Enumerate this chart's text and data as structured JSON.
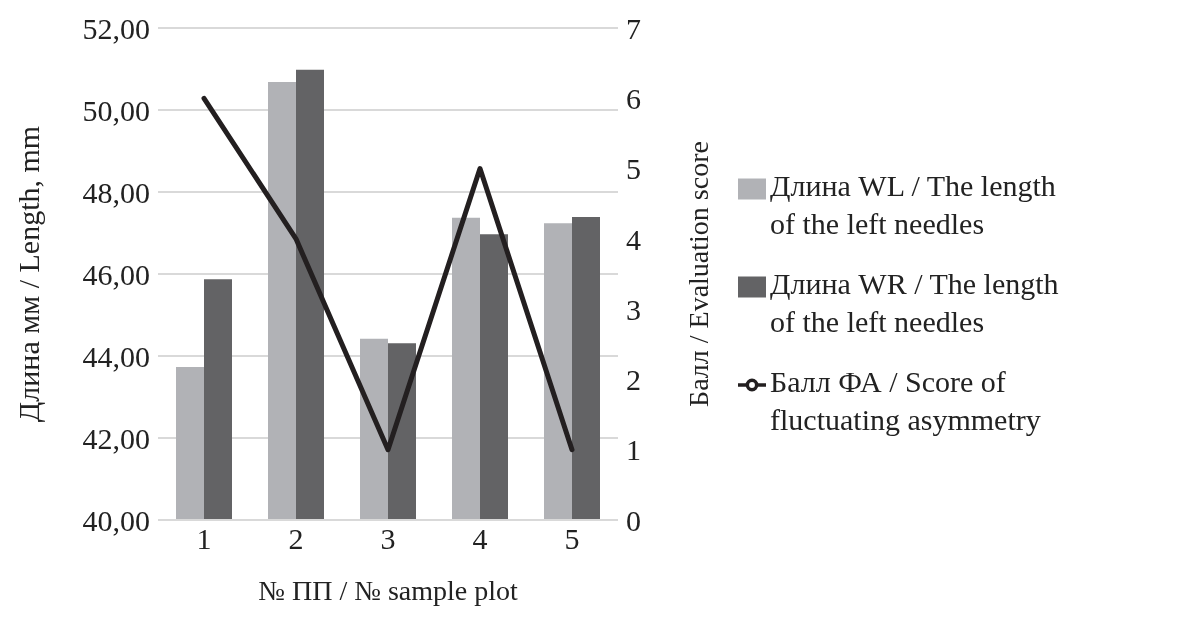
{
  "chart_data": {
    "type": "bar",
    "categories": [
      "1",
      "2",
      "3",
      "4",
      "5"
    ],
    "series": [
      {
        "name": "Длина WL / The length of the left needles",
        "color": "#b1b2b6",
        "values": [
          43.73,
          50.68,
          44.42,
          47.37,
          47.24
        ]
      },
      {
        "name": "Длина WR / The length of the left needles",
        "color": "#636365",
        "values": [
          45.87,
          50.98,
          44.31,
          46.97,
          47.39
        ]
      },
      {
        "name": "Балл ФА / Score of fluctuating asymmetry",
        "type": "line",
        "axis": "y2",
        "color": "#231f20",
        "values": [
          6,
          4,
          1,
          5,
          1
        ]
      }
    ],
    "xlabel": "№ ПП / № sample plot",
    "ylabel": "Длина мм / Length, mm",
    "y2label": "Балл / Evaluation score",
    "ylim": [
      40,
      52
    ],
    "yticks": [
      {
        "value": 40,
        "label": "40,00"
      },
      {
        "value": 42,
        "label": "42,00"
      },
      {
        "value": 44,
        "label": "44,00"
      },
      {
        "value": 46,
        "label": "46,00"
      },
      {
        "value": 48,
        "label": "48,00"
      },
      {
        "value": 50,
        "label": "50,00"
      },
      {
        "value": 52,
        "label": "52,00"
      }
    ],
    "y2lim": [
      0,
      7
    ],
    "y2ticks": [
      0,
      1,
      2,
      3,
      4,
      5,
      6,
      7
    ],
    "grid": "y",
    "legend": "right",
    "marker": "none",
    "line_style": "solid"
  }
}
